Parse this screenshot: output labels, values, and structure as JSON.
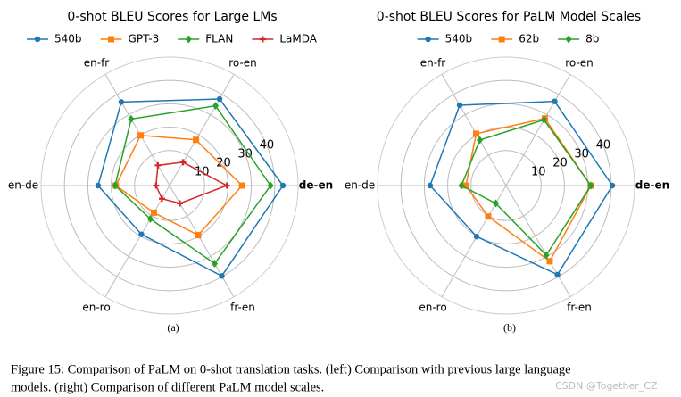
{
  "chart_data": [
    {
      "type": "radar",
      "title": "0-shot BLEU Scores for Large LMs",
      "subcaption": "(a)",
      "categories": [
        "de-en",
        "ro-en",
        "en-fr",
        "en-de",
        "en-ro",
        "fr-en"
      ],
      "ylim": [
        -5,
        50
      ],
      "yticks": [
        10,
        20,
        30,
        40
      ],
      "grid": true,
      "series": [
        {
          "name": "540b",
          "color": "#1f77b4",
          "marker": "circle",
          "values": [
            43.5,
            37.8,
            36.3,
            25.6,
            19.1,
            39.7
          ]
        },
        {
          "name": "GPT-3",
          "color": "#ff7f0e",
          "marker": "square",
          "values": [
            26,
            17.6,
            19.8,
            18,
            8.4,
            19.5
          ]
        },
        {
          "name": "FLAN",
          "color": "#2ca02c",
          "marker": "diamond",
          "values": [
            38.2,
            34.4,
            27.9,
            18.3,
            11.5,
            33.6
          ]
        },
        {
          "name": "LaMDA",
          "color": "#d62728",
          "marker": "plus",
          "values": [
            19.5,
            6.5,
            5,
            0.8,
            1.5,
            3.8
          ]
        }
      ]
    },
    {
      "type": "radar",
      "title": "0-shot BLEU Scores for PaLM Model Scales",
      "subcaption": "(b)",
      "categories": [
        "de-en",
        "ro-en",
        "en-fr",
        "en-de",
        "en-ro",
        "fr-en"
      ],
      "ylim": [
        -5,
        50
      ],
      "yticks": [
        10,
        20,
        30,
        40
      ],
      "grid": true,
      "series": [
        {
          "name": "540b",
          "color": "#1f77b4",
          "marker": "circle",
          "values": [
            40.5,
            36.6,
            34.7,
            27.5,
            20.2,
            39
          ]
        },
        {
          "name": "62b",
          "color": "#ff7f0e",
          "marker": "square",
          "values": [
            31.3,
            28.2,
            20.6,
            12.2,
            10.3,
            32.4
          ]
        },
        {
          "name": "8b",
          "color": "#2ca02c",
          "marker": "diamond",
          "values": [
            31.3,
            27.5,
            17.5,
            14.1,
            3.8,
            29.4
          ]
        }
      ]
    }
  ],
  "caption": [
    "Figure 15: Comparison of PaLM on 0-shot translation tasks. (left) Comparison with previous large language",
    "models. (right) Comparison of different PaLM model scales."
  ],
  "watermark": "CSDN @Together_CZ"
}
